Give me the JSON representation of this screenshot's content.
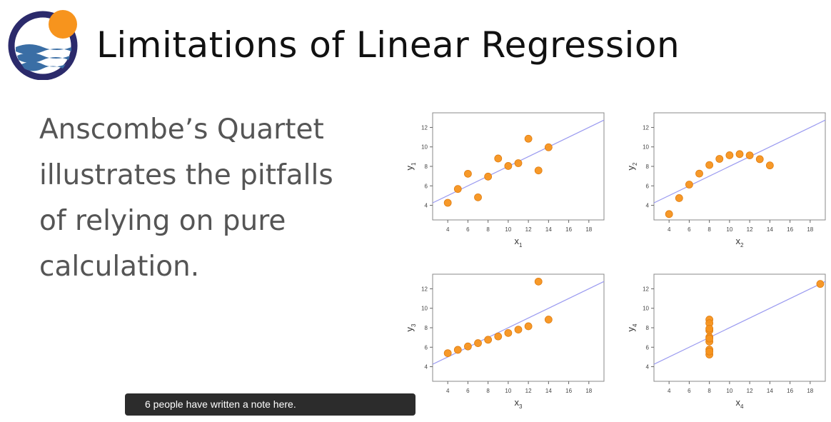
{
  "header": {
    "title": "Limitations of Linear Regression"
  },
  "body": {
    "lines": [
      "Anscombe’s Quartet",
      "illustrates the pitfalls",
      "of relying on pure",
      "calculation."
    ]
  },
  "note_banner": {
    "text": "6 people have written a note here."
  },
  "colors": {
    "point": "#f7941d",
    "point_stroke": "#e07d10",
    "regression_line": "#9a9af0",
    "axis": "#555555",
    "logo_ring": "#2b2a6b",
    "logo_sun": "#f7941d",
    "logo_wave": "#3a6ea5"
  },
  "chart_data": [
    {
      "type": "scatter",
      "xlabel": "x",
      "xlabel_sub": "1",
      "ylabel": "y",
      "ylabel_sub": "1",
      "x_ticks": [
        4,
        6,
        8,
        10,
        12,
        14,
        16,
        18
      ],
      "y_ticks": [
        4,
        6,
        8,
        10,
        12
      ],
      "xlim": [
        2.5,
        19.5
      ],
      "ylim": [
        2.5,
        13.5
      ],
      "regression": {
        "intercept": 3.0,
        "slope": 0.5
      },
      "x": [
        10,
        8,
        13,
        9,
        11,
        14,
        6,
        4,
        12,
        7,
        5
      ],
      "y": [
        8.04,
        6.95,
        7.58,
        8.81,
        8.33,
        9.96,
        7.24,
        4.26,
        10.84,
        4.82,
        5.68
      ]
    },
    {
      "type": "scatter",
      "xlabel": "x",
      "xlabel_sub": "2",
      "ylabel": "y",
      "ylabel_sub": "2",
      "x_ticks": [
        4,
        6,
        8,
        10,
        12,
        14,
        16,
        18
      ],
      "y_ticks": [
        4,
        6,
        8,
        10,
        12
      ],
      "xlim": [
        2.5,
        19.5
      ],
      "ylim": [
        2.5,
        13.5
      ],
      "regression": {
        "intercept": 3.0,
        "slope": 0.5
      },
      "x": [
        10,
        8,
        13,
        9,
        11,
        14,
        6,
        4,
        12,
        7,
        5
      ],
      "y": [
        9.14,
        8.14,
        8.74,
        8.77,
        9.26,
        8.1,
        6.13,
        3.1,
        9.13,
        7.26,
        4.74
      ]
    },
    {
      "type": "scatter",
      "xlabel": "x",
      "xlabel_sub": "3",
      "ylabel": "y",
      "ylabel_sub": "3",
      "x_ticks": [
        4,
        6,
        8,
        10,
        12,
        14,
        16,
        18
      ],
      "y_ticks": [
        4,
        6,
        8,
        10,
        12
      ],
      "xlim": [
        2.5,
        19.5
      ],
      "ylim": [
        2.5,
        13.5
      ],
      "regression": {
        "intercept": 3.0,
        "slope": 0.5
      },
      "x": [
        10,
        8,
        13,
        9,
        11,
        14,
        6,
        4,
        12,
        7,
        5
      ],
      "y": [
        7.46,
        6.77,
        12.74,
        7.11,
        7.81,
        8.84,
        6.08,
        5.39,
        8.15,
        6.42,
        5.73
      ]
    },
    {
      "type": "scatter",
      "xlabel": "x",
      "xlabel_sub": "4",
      "ylabel": "y",
      "ylabel_sub": "4",
      "x_ticks": [
        4,
        6,
        8,
        10,
        12,
        14,
        16,
        18
      ],
      "y_ticks": [
        4,
        6,
        8,
        10,
        12
      ],
      "xlim": [
        2.5,
        19.5
      ],
      "ylim": [
        2.5,
        13.5
      ],
      "regression": {
        "intercept": 3.0,
        "slope": 0.5
      },
      "x": [
        8,
        8,
        8,
        8,
        8,
        8,
        8,
        19,
        8,
        8,
        8
      ],
      "y": [
        6.58,
        5.76,
        7.71,
        8.84,
        8.47,
        7.04,
        5.25,
        12.5,
        5.56,
        7.91,
        6.89
      ]
    }
  ]
}
